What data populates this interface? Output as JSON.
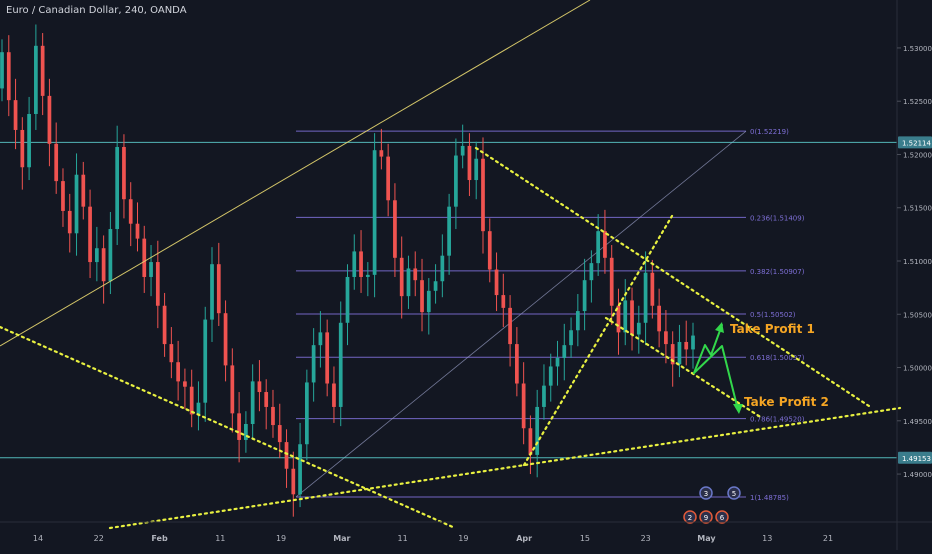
{
  "header": {
    "title": "Euro / Canadian Dollar, 240, OANDA"
  },
  "colors": {
    "background": "#131722",
    "up": "#26a69a",
    "down": "#ef5350",
    "fib": "#7e6fd6",
    "trend": "#e8f040",
    "channel": "#e8d870",
    "hline": "#5fd3d3",
    "axis_text": "#b2b5be",
    "annotation": "#f5a524",
    "arrow": "#32d74b"
  },
  "price_axis": {
    "ticks": [
      {
        "value": 1.53,
        "label": "1.53000"
      },
      {
        "value": 1.525,
        "label": "1.52500"
      },
      {
        "value": 1.52,
        "label": "1.52000"
      },
      {
        "value": 1.515,
        "label": "1.51500"
      },
      {
        "value": 1.51,
        "label": "1.51000"
      },
      {
        "value": 1.505,
        "label": "1.50500"
      },
      {
        "value": 1.5,
        "label": "1.50000"
      },
      {
        "value": 1.495,
        "label": "1.49500"
      },
      {
        "value": 1.49,
        "label": "1.49000"
      }
    ],
    "badges": [
      {
        "value": 1.52114,
        "label": "1.52114"
      },
      {
        "value": 1.49153,
        "label": "1.49153"
      }
    ]
  },
  "time_axis": {
    "ticks": [
      "14",
      "22",
      "Feb",
      "11",
      "19",
      "Mar",
      "11",
      "19",
      "Apr",
      "15",
      "23",
      "May",
      "13",
      "21"
    ]
  },
  "fib_levels": [
    {
      "ratio": "0",
      "value": 1.52219,
      "label": "0(1.52219)"
    },
    {
      "ratio": "0.236",
      "value": 1.51409,
      "label": "0.236(1.51409)"
    },
    {
      "ratio": "0.382",
      "value": 1.50907,
      "label": "0.382(1.50907)"
    },
    {
      "ratio": "0.5",
      "value": 1.50502,
      "label": "0.5(1.50502)"
    },
    {
      "ratio": "0.618",
      "value": 1.50097,
      "label": "0.618(1.50097)"
    },
    {
      "ratio": "0.786",
      "value": 1.4952,
      "label": "0.786(1.49520)"
    },
    {
      "ratio": "1",
      "value": 1.48785,
      "label": "1(1.48785)"
    }
  ],
  "annotations": {
    "tp1": "Take Profit 1",
    "tp2": "Take Profit 2"
  },
  "event_markers": [
    "3",
    "5",
    "2",
    "9",
    "6"
  ],
  "chart_data": {
    "type": "candlestick",
    "symbol": "EURCAD",
    "timeframe": "240",
    "ylim": [
      1.4855,
      1.5345
    ],
    "series": [
      {
        "name": "",
        "points": [
          [
            1.5262,
            1.5296
          ],
          [
            1.5296,
            1.5251
          ],
          [
            1.5251,
            1.5223
          ],
          [
            1.5223,
            1.5188
          ],
          [
            1.5188,
            1.5238
          ],
          [
            1.5238,
            1.5302
          ],
          [
            1.5302,
            1.5255
          ],
          [
            1.5255,
            1.521
          ],
          [
            1.521,
            1.5175
          ],
          [
            1.5175,
            1.5147
          ],
          [
            1.5147,
            1.5126
          ],
          [
            1.5126,
            1.5181
          ],
          [
            1.5181,
            1.5151
          ],
          [
            1.5151,
            1.5099
          ],
          [
            1.5099,
            1.5112
          ],
          [
            1.5112,
            1.5081
          ],
          [
            1.5081,
            1.513
          ],
          [
            1.513,
            1.5207
          ],
          [
            1.5207,
            1.5158
          ],
          [
            1.5158,
            1.5135
          ],
          [
            1.5135,
            1.5121
          ],
          [
            1.5121,
            1.5085
          ],
          [
            1.5085,
            1.5099
          ],
          [
            1.5099,
            1.5058
          ],
          [
            1.5058,
            1.5022
          ],
          [
            1.5022,
            1.5005
          ],
          [
            1.5005,
            1.4987
          ],
          [
            1.4987,
            1.4982
          ],
          [
            1.4982,
            1.4956
          ],
          [
            1.4956,
            1.4967
          ],
          [
            1.4967,
            1.5045
          ],
          [
            1.5045,
            1.5097
          ],
          [
            1.5097,
            1.5051
          ],
          [
            1.5051,
            1.5002
          ],
          [
            1.5002,
            1.4957
          ],
          [
            1.4957,
            1.4932
          ],
          [
            1.4932,
            1.4947
          ],
          [
            1.4947,
            1.4987
          ],
          [
            1.4987,
            1.4977
          ],
          [
            1.4977,
            1.4963
          ],
          [
            1.4963,
            1.4946
          ],
          [
            1.4946,
            1.493
          ],
          [
            1.493,
            1.4905
          ],
          [
            1.4905,
            1.4881
          ],
          [
            1.4881,
            1.4928
          ],
          [
            1.4928,
            1.4986
          ],
          [
            1.4986,
            1.5021
          ],
          [
            1.5021,
            1.5033
          ],
          [
            1.5033,
            1.4985
          ],
          [
            1.4985,
            1.4963
          ],
          [
            1.4963,
            1.5042
          ],
          [
            1.5042,
            1.5085
          ],
          [
            1.5085,
            1.5109
          ],
          [
            1.5109,
            1.5085
          ],
          [
            1.5085,
            1.5087
          ],
          [
            1.5087,
            1.5204
          ],
          [
            1.5204,
            1.5198
          ],
          [
            1.5198,
            1.5157
          ],
          [
            1.5157,
            1.5103
          ],
          [
            1.5103,
            1.5067
          ],
          [
            1.5067,
            1.5093
          ],
          [
            1.5093,
            1.5082
          ],
          [
            1.5082,
            1.5052
          ],
          [
            1.5052,
            1.5072
          ],
          [
            1.5072,
            1.5081
          ],
          [
            1.5081,
            1.5105
          ],
          [
            1.5105,
            1.5151
          ],
          [
            1.5151,
            1.5199
          ],
          [
            1.5199,
            1.5208
          ],
          [
            1.5208,
            1.5176
          ],
          [
            1.5176,
            1.5196
          ],
          [
            1.5196,
            1.5128
          ],
          [
            1.5128,
            1.5092
          ],
          [
            1.5092,
            1.5068
          ],
          [
            1.5068,
            1.5056
          ],
          [
            1.5056,
            1.5022
          ],
          [
            1.5022,
            1.4985
          ],
          [
            1.4985,
            1.4943
          ],
          [
            1.4943,
            1.4918
          ],
          [
            1.4918,
            1.4963
          ],
          [
            1.4963,
            1.4983
          ],
          [
            1.4983,
            1.5001
          ],
          [
            1.5001,
            1.5009
          ],
          [
            1.5009,
            1.5021
          ],
          [
            1.5021,
            1.5035
          ],
          [
            1.5035,
            1.5053
          ],
          [
            1.5053,
            1.5082
          ],
          [
            1.5082,
            1.5098
          ],
          [
            1.5098,
            1.5128
          ],
          [
            1.5128,
            1.5103
          ],
          [
            1.5103,
            1.5058
          ],
          [
            1.5058,
            1.5033
          ],
          [
            1.5033,
            1.5063
          ],
          [
            1.5063,
            1.5031
          ],
          [
            1.5031,
            1.5042
          ],
          [
            1.5042,
            1.5089
          ],
          [
            1.5089,
            1.5058
          ],
          [
            1.5058,
            1.5034
          ],
          [
            1.5034,
            1.5022
          ],
          [
            1.5022,
            1.5003
          ],
          [
            1.5003,
            1.5024
          ],
          [
            1.5024,
            1.5017
          ],
          [
            1.5017,
            1.503
          ]
        ]
      }
    ]
  }
}
